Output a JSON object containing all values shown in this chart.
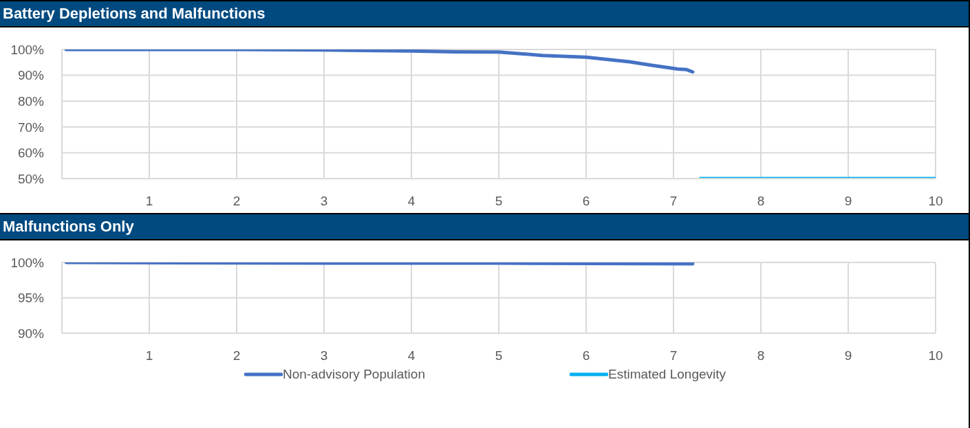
{
  "chart_data": [
    {
      "type": "line",
      "title": "Battery Depletions and Malfunctions",
      "xlim": [
        0,
        10
      ],
      "xticks": [
        1,
        2,
        3,
        4,
        5,
        6,
        7,
        8,
        9,
        10
      ],
      "ylim": [
        50,
        100
      ],
      "yticks": [
        {
          "value": 50,
          "label": "50%"
        },
        {
          "value": 60,
          "label": "60%"
        },
        {
          "value": 70,
          "label": "70%"
        },
        {
          "value": 80,
          "label": "80%"
        },
        {
          "value": 90,
          "label": "90%"
        },
        {
          "value": 100,
          "label": "100%"
        }
      ],
      "grid": true,
      "legend": "bottom",
      "series": [
        {
          "name": "Non-advisory Population",
          "color": "#4472c4",
          "x": [
            0.05,
            1,
            2,
            3,
            4,
            4.5,
            5,
            5.5,
            6,
            6.5,
            6.75,
            7.05,
            7.15,
            7.22
          ],
          "values": [
            100,
            100,
            100,
            99.8,
            99.4,
            99.1,
            99,
            97.7,
            97,
            95.2,
            93.9,
            92.4,
            92.2,
            91.3
          ]
        },
        {
          "name": "Estimated Longevity",
          "color": "#00b0f0",
          "x": [
            7.31,
            10
          ],
          "values": [
            50,
            50
          ]
        }
      ]
    },
    {
      "type": "line",
      "title": "Malfunctions Only",
      "xlim": [
        0,
        10
      ],
      "xticks": [
        1,
        2,
        3,
        4,
        5,
        6,
        7,
        8,
        9,
        10
      ],
      "ylim": [
        90,
        100
      ],
      "yticks": [
        {
          "value": 90,
          "label": "90%"
        },
        {
          "value": 95,
          "label": "95%"
        },
        {
          "value": 100,
          "label": "100%"
        }
      ],
      "grid": true,
      "series": [
        {
          "color": "#4472c4",
          "x": [
            0.05,
            3,
            5,
            7.22
          ],
          "values": [
            100,
            99.9,
            99.9,
            99.8
          ]
        }
      ]
    }
  ]
}
